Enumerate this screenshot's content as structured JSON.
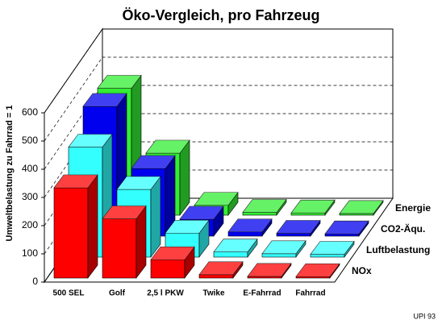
{
  "chart_data": {
    "type": "bar3d",
    "title": "Öko-Vergleich, pro Fahrzeug",
    "y_label": "Umweltbelastung zu Fahrrad = 1",
    "footnote": "UPI 93",
    "categories": [
      "500 SEL",
      "Golf",
      "2,5 l PKW",
      "Twike",
      "E-Fahrrad",
      "Fahrrad"
    ],
    "series": [
      {
        "name": "NOx",
        "color": "#ff0000",
        "values": [
          320,
          210,
          65,
          12,
          6,
          5
        ]
      },
      {
        "name": "Luftbelastung",
        "color": "#33ffff",
        "values": [
          390,
          240,
          85,
          18,
          12,
          10
        ]
      },
      {
        "name": "CO2-Äqu.",
        "color": "#0000ee",
        "values": [
          460,
          240,
          60,
          15,
          10,
          8
        ]
      },
      {
        "name": "Energie",
        "color": "#33ee33",
        "values": [
          450,
          220,
          35,
          10,
          8,
          6
        ]
      }
    ],
    "ylim": [
      0,
      600
    ],
    "yticks": [
      0,
      100,
      200,
      300,
      400,
      500,
      600
    ],
    "grid": true
  }
}
